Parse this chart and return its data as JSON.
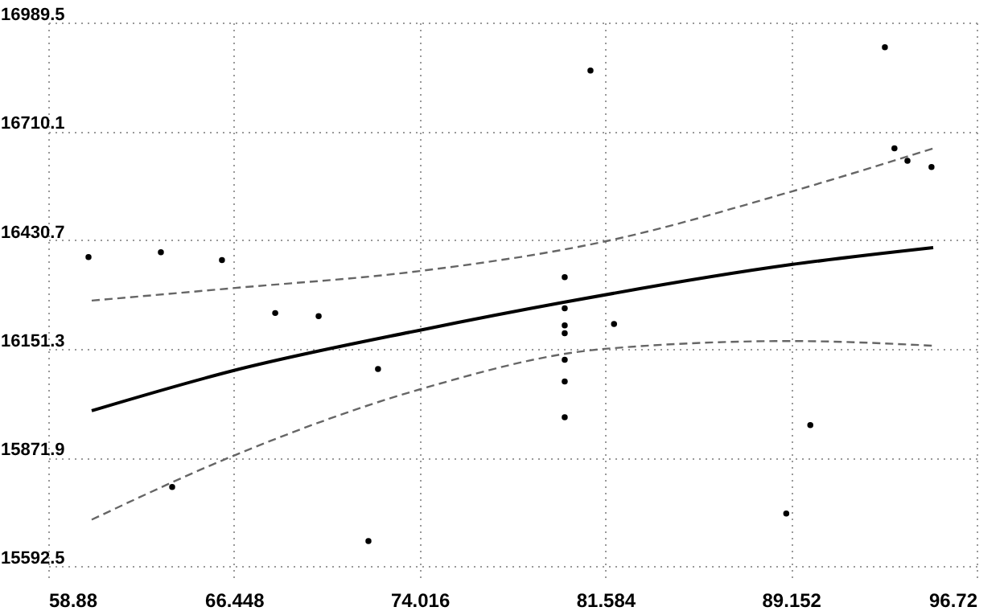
{
  "chart_data": {
    "type": "scatter",
    "xlim": [
      58.88,
      96.72
    ],
    "xticks": [
      58.88,
      66.448,
      74.016,
      81.584,
      89.152,
      96.72
    ],
    "ylim": [
      15560,
      16989.5
    ],
    "yticks": [
      15592.5,
      15871.9,
      16151.3,
      16430.7,
      16710.1,
      16989.5
    ],
    "grid": true,
    "series": [
      {
        "marker": "circle",
        "color": "#000000",
        "x": [
          60.52,
          63.47,
          65.96,
          68.13,
          69.9,
          72.32,
          63.93,
          71.93,
          80.98,
          92.98,
          93.37,
          93.9,
          94.88,
          79.93,
          79.93,
          79.93,
          79.93,
          79.93,
          79.93,
          79.93,
          81.94,
          88.96,
          89.94
        ],
        "values": [
          16387,
          16399,
          16379,
          16243,
          16235,
          16099,
          15796,
          15657,
          16866,
          16926,
          16666,
          16634,
          16618,
          16335,
          16255,
          16211,
          16191,
          16123,
          16067,
          15975,
          16215,
          15728,
          15955
        ]
      },
      {
        "type": "line",
        "color": "#000000",
        "line_style": "solid",
        "x": [
          60.65,
          66.42,
          74.03,
          79.93,
          89.11,
          94.95
        ],
        "values": [
          15992,
          16095,
          16199,
          16271,
          16367,
          16411
        ]
      },
      {
        "type": "line",
        "color": "#666666",
        "line_style": "dashed",
        "x": [
          60.65,
          66.42,
          74.03,
          81.57,
          89.11,
          94.95
        ],
        "values": [
          16275,
          16307,
          16351,
          16427,
          16554,
          16666
        ]
      },
      {
        "type": "line",
        "color": "#666666",
        "line_style": "dashed",
        "x": [
          60.65,
          66.42,
          74.03,
          81.57,
          89.11,
          94.95
        ],
        "values": [
          15712,
          15876,
          16047,
          16151,
          16171,
          16159
        ]
      }
    ]
  }
}
